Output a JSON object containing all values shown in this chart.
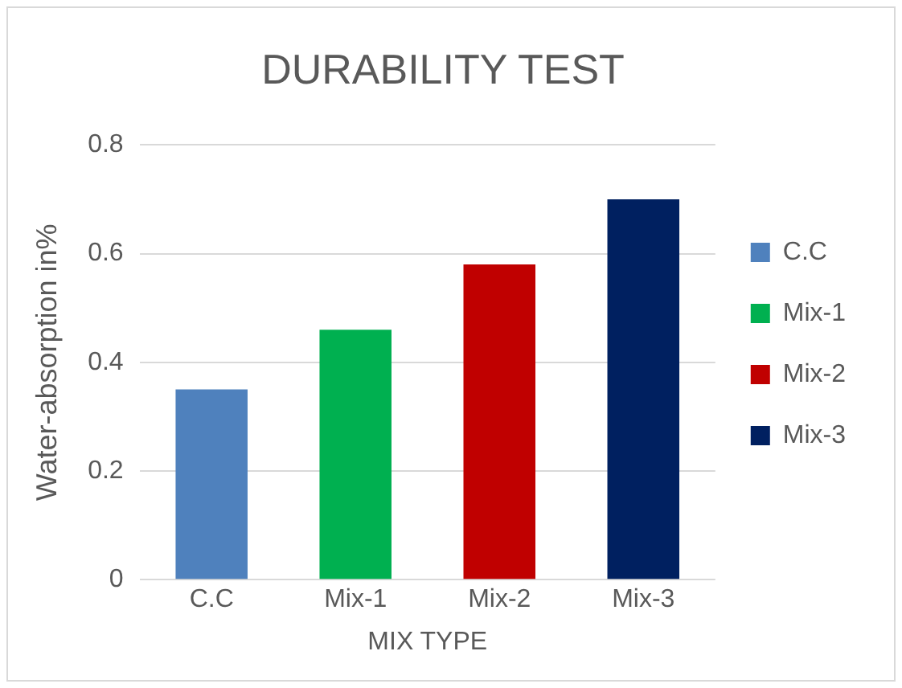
{
  "chart_data": {
    "type": "bar",
    "title": "DURABILITY TEST",
    "xlabel": "MIX TYPE",
    "ylabel": "Water-absorption in%",
    "categories": [
      "C.C",
      "Mix-1",
      "Mix-2",
      "Mix-3"
    ],
    "series": [
      {
        "name": "C.C",
        "color": "#4f81bd",
        "values": [
          0.35,
          null,
          null,
          null
        ]
      },
      {
        "name": "Mix-1",
        "color": "#00b050",
        "values": [
          null,
          0.46,
          null,
          null
        ]
      },
      {
        "name": "Mix-2",
        "color": "#c00000",
        "values": [
          null,
          null,
          0.58,
          null
        ]
      },
      {
        "name": "Mix-3",
        "color": "#002060",
        "values": [
          null,
          null,
          null,
          0.7
        ]
      }
    ],
    "ylim": [
      0,
      0.8
    ],
    "yticks": [
      0,
      0.2,
      0.4,
      0.6,
      0.8
    ],
    "grid": "y",
    "legend": "right"
  }
}
